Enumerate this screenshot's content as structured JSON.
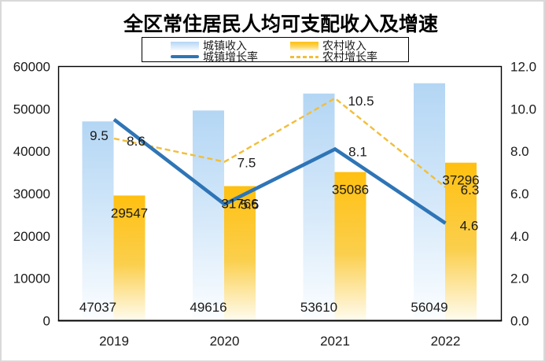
{
  "window": {
    "background": "#FFFFFF",
    "border_color": "#D9D9D9"
  },
  "chart_data": {
    "type": "combo-bar-line",
    "title": "全区常住居民人均可支配收入及增速",
    "categories": [
      "2019",
      "2020",
      "2021",
      "2022"
    ],
    "series": [
      {
        "name": "城镇收入",
        "type": "bar",
        "axis": "left",
        "values": [
          47037,
          49616,
          53610,
          56049
        ],
        "labels": [
          "47037",
          "49616",
          "53610",
          "56049"
        ],
        "color_top": "#B3D6F4",
        "color_mid": "#D8EAFA",
        "color_bottom": "#FCFEFF"
      },
      {
        "name": "农村收入",
        "type": "bar",
        "axis": "left",
        "values": [
          29547,
          31766,
          35086,
          37296
        ],
        "labels": [
          "29547",
          "31766",
          "35086",
          "37296"
        ],
        "color_top": "#FFC010",
        "color_mid": "#FBCF4D",
        "color_bottom": "#FFFCF0"
      },
      {
        "name": "城镇增长率",
        "type": "line",
        "axis": "right",
        "values": [
          9.5,
          5.5,
          8.1,
          4.6
        ],
        "labels": [
          "9.5",
          "5.5",
          "8.1",
          "4.6"
        ],
        "color": "#2E75B6",
        "dashed": false
      },
      {
        "name": "农村增长率",
        "type": "line",
        "axis": "right",
        "values": [
          8.6,
          7.5,
          10.5,
          6.3
        ],
        "labels": [
          "8.6",
          "7.5",
          "10.5",
          "6.3"
        ],
        "color": "#F2BE3A",
        "dashed": true
      }
    ],
    "left_axis": {
      "min": 0,
      "max": 60000,
      "ticks": [
        "0",
        "10000",
        "20000",
        "30000",
        "40000",
        "50000",
        "60000"
      ]
    },
    "right_axis": {
      "min": 0,
      "max": 12,
      "ticks": [
        "0.0",
        "2.0",
        "4.0",
        "6.0",
        "8.0",
        "10.0",
        "12.0"
      ]
    },
    "legend_position": "top",
    "grid": false,
    "plot_border": true,
    "text_color": "#1A1A1A"
  }
}
